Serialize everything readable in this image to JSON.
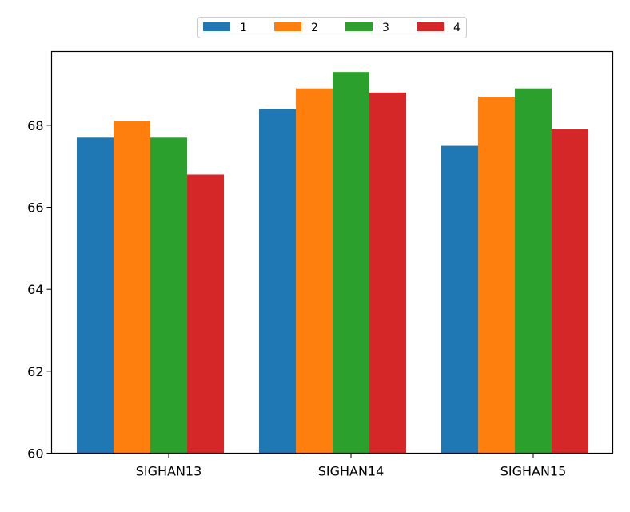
{
  "chart_data": {
    "type": "bar",
    "categories": [
      "SIGHAN13",
      "SIGHAN14",
      "SIGHAN15"
    ],
    "series": [
      {
        "name": "1",
        "values": [
          67.7,
          68.4,
          67.5
        ]
      },
      {
        "name": "2",
        "values": [
          68.1,
          68.9,
          68.7
        ]
      },
      {
        "name": "3",
        "values": [
          67.7,
          69.3,
          68.9
        ]
      },
      {
        "name": "4",
        "values": [
          66.8,
          68.8,
          67.9
        ]
      }
    ],
    "title": "",
    "xlabel": "",
    "ylabel": "",
    "ylim": [
      60,
      69.8
    ],
    "yticks": [
      60,
      62,
      64,
      66,
      68
    ],
    "grid": false,
    "legend_position": "top-center",
    "colors": [
      "#1f77b4",
      "#ff7f0e",
      "#2ca02c",
      "#d62728"
    ]
  }
}
